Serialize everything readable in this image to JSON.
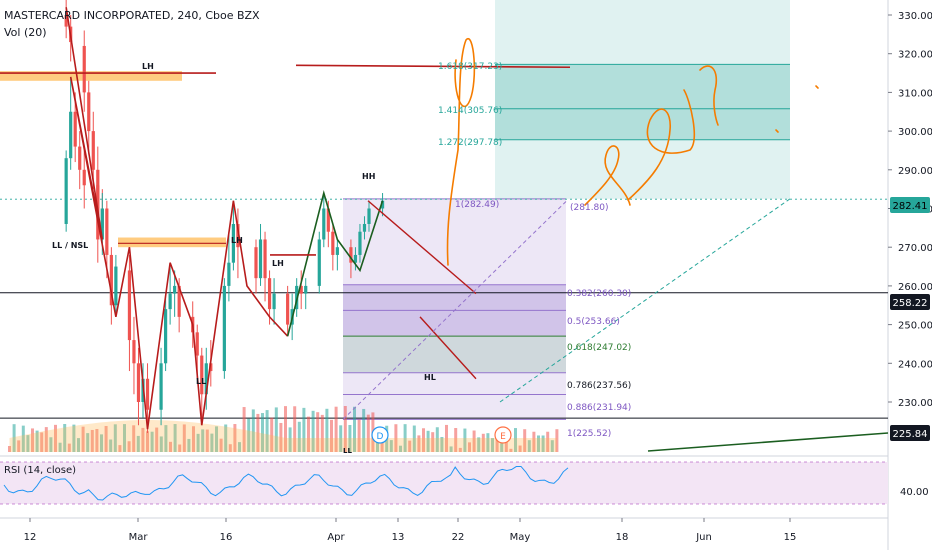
{
  "header": {
    "symbol_title": "MASTERCARD INCORPORATED, 240, Cboe BZX",
    "volume_label": "Vol (20)"
  },
  "rsi": {
    "label": "RSI (14, close)",
    "axis_value": "40.00"
  },
  "price_badges": [
    {
      "value": "282.41",
      "color": "#26a69a",
      "text_color": "#000000"
    },
    {
      "value": "258.22",
      "color": "#131722",
      "text_color": "#ffffff"
    },
    {
      "value": "225.84",
      "color": "#131722",
      "text_color": "#ffffff"
    }
  ],
  "annotations": {
    "lh_top": "LH",
    "lh_mid": "LH",
    "lh_apr": "LH",
    "ll_nsl": "LL / NSL",
    "ll": "LL",
    "hh": "HH",
    "hl": "HL",
    "ll_bottom": "LL"
  },
  "event_markers": [
    "D",
    "E"
  ],
  "fib_retracement": [
    {
      "label": "1(282.49)"
    },
    {
      "label": "(281.80)"
    },
    {
      "label": "0.382(260.30)"
    },
    {
      "label": "0.5(253.66)"
    },
    {
      "label": "0.618(247.02)"
    },
    {
      "label": "0.786(237.56)"
    },
    {
      "label": "0.886(231.94)"
    },
    {
      "label": "1(225.52)"
    }
  ],
  "fib_extension": [
    {
      "label": "1.618(317.23)"
    },
    {
      "label": "1.414(305.76)"
    },
    {
      "label": "1.272(297.78)"
    }
  ],
  "chart_data": {
    "type": "candlestick",
    "y_axis": {
      "min": 220,
      "max": 333,
      "ticks": [
        230,
        240,
        250,
        260,
        270,
        280,
        290,
        300,
        310,
        320,
        330
      ]
    },
    "x_axis": {
      "ticks": [
        "12",
        "Mar",
        "16",
        "Apr",
        "13",
        "22",
        "May",
        "18",
        "Jun",
        "15"
      ]
    },
    "last_price": 282.41,
    "horizontal_levels": [
      258.22,
      225.84
    ],
    "trend_path": [
      {
        "x": "Feb 20",
        "y": 332
      },
      {
        "x": "Feb 28",
        "y": 272
      },
      {
        "x": "Mar 3",
        "y": 314
      },
      {
        "x": "Mar 13",
        "y": 252
      },
      {
        "x": "Mar 16",
        "y": 270
      },
      {
        "x": "Mar 20",
        "y": 223
      },
      {
        "x": "Mar 25",
        "y": 266
      },
      {
        "x": "Mar 30",
        "y": 250
      },
      {
        "x": "Apr 1",
        "y": 224
      },
      {
        "x": "Apr 8",
        "y": 282
      },
      {
        "x": "Apr 11",
        "y": 260
      },
      {
        "x": "Apr 16",
        "y": 252
      },
      {
        "x": "Apr 20",
        "y": 247
      },
      {
        "x": "Apr 28",
        "y": 284
      },
      {
        "x": "May 1",
        "y": 272
      },
      {
        "x": "May 6",
        "y": 264
      },
      {
        "x": "May 11",
        "y": 282
      }
    ],
    "candles": [
      {
        "x": "Feb 20",
        "o": 330,
        "h": 334,
        "c": 327,
        "l": 324
      },
      {
        "x": "Feb 21",
        "o": 327,
        "h": 330,
        "c": 323,
        "l": 318
      },
      {
        "x": "Feb 24",
        "o": 322,
        "h": 326,
        "c": 310,
        "l": 305
      },
      {
        "x": "Feb 25",
        "o": 310,
        "h": 313,
        "c": 300,
        "l": 294
      },
      {
        "x": "Feb 26",
        "o": 300,
        "h": 305,
        "c": 290,
        "l": 285
      },
      {
        "x": "Feb 27",
        "o": 290,
        "h": 296,
        "c": 280,
        "l": 273
      },
      {
        "x": "Feb 28",
        "o": 280,
        "h": 285,
        "c": 275,
        "l": 271
      },
      {
        "x": "Mar 2",
        "o": 276,
        "h": 295,
        "c": 293,
        "l": 274
      },
      {
        "x": "Mar 3",
        "o": 293,
        "h": 314,
        "c": 305,
        "l": 290
      },
      {
        "x": "Mar 4",
        "o": 305,
        "h": 310,
        "c": 296,
        "l": 292
      },
      {
        "x": "Mar 5",
        "o": 296,
        "h": 300,
        "c": 290,
        "l": 285
      },
      {
        "x": "Mar 6",
        "o": 290,
        "h": 295,
        "c": 286,
        "l": 280
      },
      {
        "x": "Mar 9",
        "o": 286,
        "h": 288,
        "c": 272,
        "l": 266
      },
      {
        "x": "Mar 10",
        "o": 272,
        "h": 284,
        "c": 280,
        "l": 268
      },
      {
        "x": "Mar 11",
        "o": 280,
        "h": 282,
        "c": 268,
        "l": 262
      },
      {
        "x": "Mar 12",
        "o": 268,
        "h": 270,
        "c": 255,
        "l": 250
      },
      {
        "x": "Mar 13",
        "o": 255,
        "h": 268,
        "c": 265,
        "l": 252
      },
      {
        "x": "Mar 16",
        "o": 264,
        "h": 268,
        "c": 246,
        "l": 238
      },
      {
        "x": "Mar 17",
        "o": 246,
        "h": 252,
        "c": 240,
        "l": 232
      },
      {
        "x": "Mar 18",
        "o": 240,
        "h": 244,
        "c": 230,
        "l": 224
      },
      {
        "x": "Mar 19",
        "o": 230,
        "h": 240,
        "c": 236,
        "l": 226
      },
      {
        "x": "Mar 20",
        "o": 236,
        "h": 240,
        "c": 228,
        "l": 222
      },
      {
        "x": "Mar 23",
        "o": 228,
        "h": 244,
        "c": 240,
        "l": 224
      },
      {
        "x": "Mar 24",
        "o": 240,
        "h": 258,
        "c": 254,
        "l": 238
      },
      {
        "x": "Mar 25",
        "o": 254,
        "h": 266,
        "c": 258,
        "l": 250
      },
      {
        "x": "Mar 26",
        "o": 258,
        "h": 264,
        "c": 260,
        "l": 252
      },
      {
        "x": "Mar 27",
        "o": 260,
        "h": 262,
        "c": 252,
        "l": 248
      },
      {
        "x": "Mar 30",
        "o": 252,
        "h": 256,
        "c": 248,
        "l": 244
      },
      {
        "x": "Mar 31",
        "o": 248,
        "h": 250,
        "c": 242,
        "l": 236
      },
      {
        "x": "Apr 1",
        "o": 242,
        "h": 244,
        "c": 232,
        "l": 225
      },
      {
        "x": "Apr 2",
        "o": 232,
        "h": 244,
        "c": 240,
        "l": 228
      },
      {
        "x": "Apr 3",
        "o": 240,
        "h": 246,
        "c": 238,
        "l": 234
      },
      {
        "x": "Apr 6",
        "o": 238,
        "h": 262,
        "c": 260,
        "l": 236
      },
      {
        "x": "Apr 7",
        "o": 260,
        "h": 274,
        "c": 266,
        "l": 256
      },
      {
        "x": "Apr 8",
        "o": 266,
        "h": 282,
        "c": 276,
        "l": 264
      },
      {
        "x": "Apr 9",
        "o": 276,
        "h": 280,
        "c": 270,
        "l": 262
      },
      {
        "x": "Apr 13",
        "o": 270,
        "h": 272,
        "c": 262,
        "l": 258
      },
      {
        "x": "Apr 14",
        "o": 262,
        "h": 276,
        "c": 272,
        "l": 260
      },
      {
        "x": "Apr 15",
        "o": 272,
        "h": 274,
        "c": 262,
        "l": 256
      },
      {
        "x": "Apr 16",
        "o": 262,
        "h": 264,
        "c": 254,
        "l": 250
      },
      {
        "x": "Apr 17",
        "o": 254,
        "h": 262,
        "c": 258,
        "l": 250
      },
      {
        "x": "Apr 20",
        "o": 258,
        "h": 260,
        "c": 250,
        "l": 247
      },
      {
        "x": "Apr 21",
        "o": 250,
        "h": 258,
        "c": 254,
        "l": 246
      },
      {
        "x": "Apr 22",
        "o": 254,
        "h": 262,
        "c": 260,
        "l": 252
      },
      {
        "x": "Apr 23",
        "o": 260,
        "h": 264,
        "c": 258,
        "l": 254
      },
      {
        "x": "Apr 24",
        "o": 258,
        "h": 262,
        "c": 260,
        "l": 254
      },
      {
        "x": "Apr 27",
        "o": 260,
        "h": 274,
        "c": 272,
        "l": 258
      },
      {
        "x": "Apr 28",
        "o": 272,
        "h": 284,
        "c": 280,
        "l": 270
      },
      {
        "x": "Apr 29",
        "o": 280,
        "h": 282,
        "c": 274,
        "l": 270
      },
      {
        "x": "Apr 30",
        "o": 274,
        "h": 276,
        "c": 268,
        "l": 264
      },
      {
        "x": "May 1",
        "o": 268,
        "h": 272,
        "c": 270,
        "l": 264
      },
      {
        "x": "May 4",
        "o": 270,
        "h": 272,
        "c": 266,
        "l": 262
      },
      {
        "x": "May 5",
        "o": 266,
        "h": 270,
        "c": 268,
        "l": 264
      },
      {
        "x": "May 6",
        "o": 268,
        "h": 276,
        "c": 274,
        "l": 266
      },
      {
        "x": "May 7",
        "o": 274,
        "h": 278,
        "c": 276,
        "l": 272
      },
      {
        "x": "May 8",
        "o": 276,
        "h": 282,
        "c": 280,
        "l": 274
      },
      {
        "x": "May 11",
        "o": 280,
        "h": 284,
        "c": 282,
        "l": 278
      }
    ],
    "volume_color_up": "#26a69a",
    "volume_color_down": "#ef5350",
    "volume_ma_color": "#ffb74d",
    "rsi_color": "#2196f3"
  }
}
